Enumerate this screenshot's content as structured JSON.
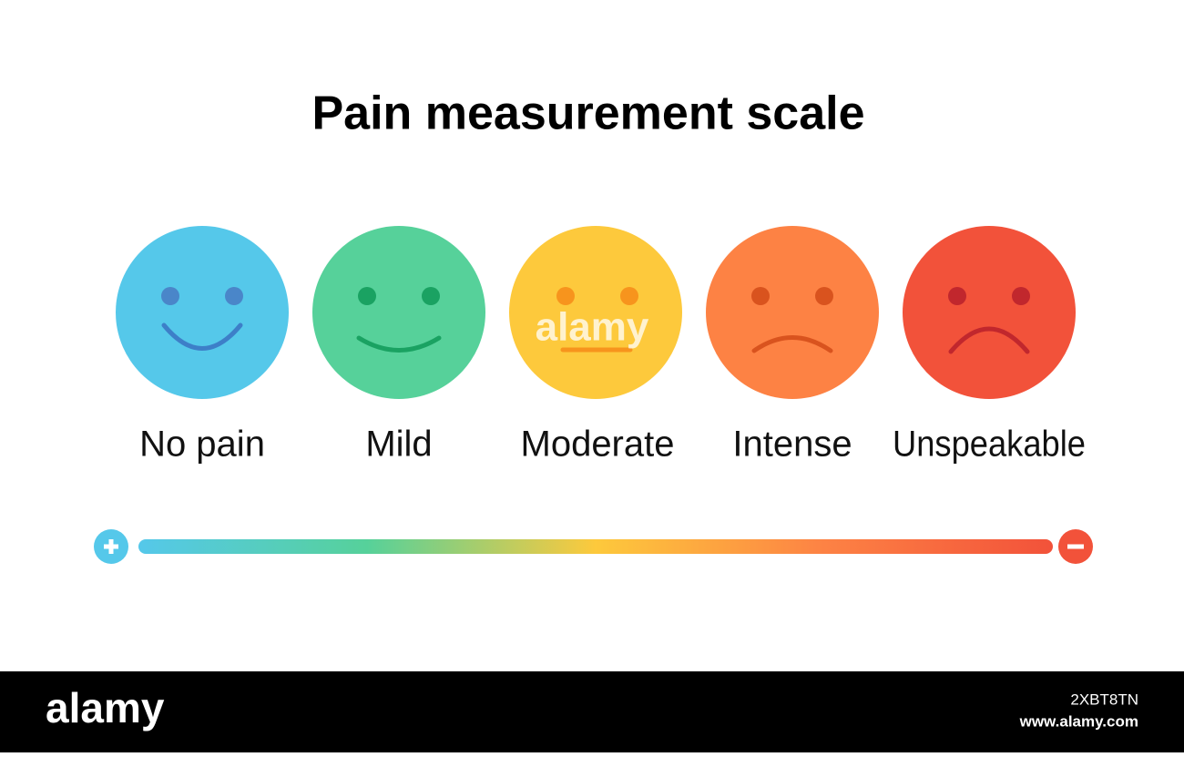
{
  "header": {
    "title": "Pain measurement scale"
  },
  "faces": [
    {
      "label": "No pain"
    },
    {
      "label": "Mild"
    },
    {
      "label": "Moderate"
    },
    {
      "label": "Intense"
    },
    {
      "label": "Unspeakable"
    }
  ],
  "watermark": "alamy",
  "footer": {
    "brand": "alamy",
    "image_id": "2XBT8TN",
    "url": "www.alamy.com"
  }
}
